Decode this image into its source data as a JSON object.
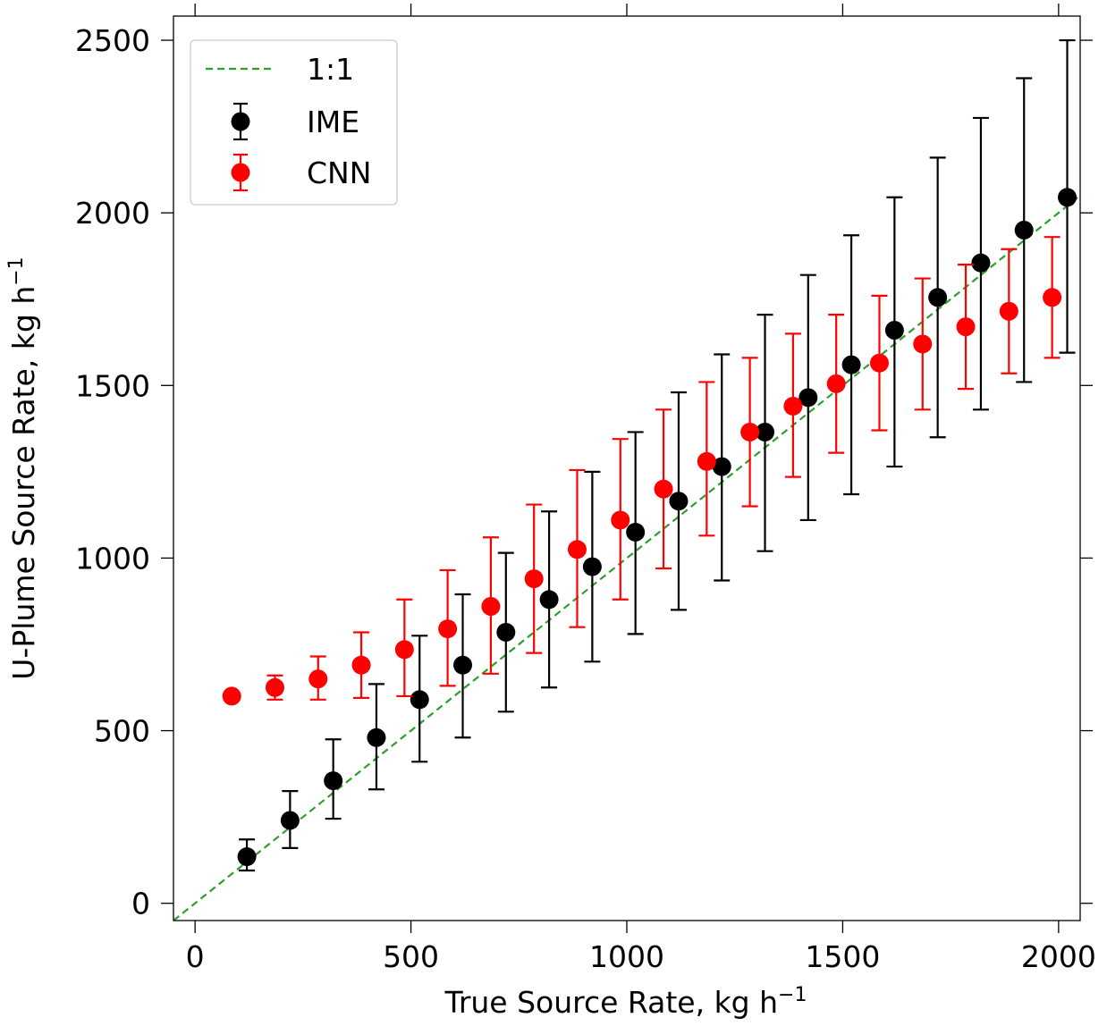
{
  "chart_data": {
    "type": "scatter",
    "xlabel": "True Source Rate, kg h",
    "xlabel_sup": "−1",
    "ylabel": "U-Plume Source Rate, kg h",
    "ylabel_sup": "−1",
    "xlim": [
      -50,
      2050
    ],
    "ylim": [
      -50,
      2570
    ],
    "xticks": [
      0,
      500,
      1000,
      1500,
      2000
    ],
    "xtick_labels": [
      "0",
      "500",
      "1000",
      "1500",
      "2000"
    ],
    "yticks": [
      0,
      500,
      1000,
      1500,
      2000,
      2500
    ],
    "ytick_labels": [
      "0",
      "500",
      "1000",
      "1500",
      "2000",
      "2500"
    ],
    "grid": false,
    "legend_position": "top-left",
    "reference_line": {
      "name": "1:1",
      "color": "#2ca02c",
      "style": "dashed"
    },
    "series": [
      {
        "name": "IME",
        "color": "#000000",
        "x": [
          120,
          220,
          320,
          420,
          520,
          620,
          720,
          820,
          920,
          1020,
          1120,
          1220,
          1320,
          1420,
          1520,
          1620,
          1720,
          1820,
          1920,
          2020
        ],
        "y": [
          135,
          240,
          355,
          480,
          590,
          690,
          785,
          880,
          975,
          1075,
          1165,
          1265,
          1365,
          1465,
          1560,
          1660,
          1755,
          1855,
          1950,
          2045
        ],
        "err_low": [
          95,
          160,
          245,
          330,
          410,
          480,
          555,
          625,
          700,
          780,
          850,
          935,
          1020,
          1110,
          1185,
          1265,
          1350,
          1430,
          1510,
          1595
        ],
        "err_high": [
          185,
          325,
          475,
          635,
          775,
          895,
          1015,
          1135,
          1250,
          1365,
          1480,
          1590,
          1705,
          1820,
          1935,
          2045,
          2160,
          2275,
          2390,
          2500
        ]
      },
      {
        "name": "CNN",
        "color": "#ff0000",
        "x": [
          85,
          185,
          285,
          385,
          485,
          585,
          685,
          785,
          885,
          985,
          1085,
          1185,
          1285,
          1385,
          1485,
          1585,
          1685,
          1785,
          1885,
          1985
        ],
        "y": [
          600,
          625,
          650,
          690,
          735,
          795,
          860,
          940,
          1025,
          1110,
          1200,
          1280,
          1365,
          1440,
          1505,
          1565,
          1620,
          1670,
          1715,
          1755
        ],
        "err_low": [
          null,
          590,
          590,
          595,
          600,
          630,
          665,
          725,
          800,
          880,
          970,
          1065,
          1150,
          1235,
          1305,
          1370,
          1430,
          1490,
          1535,
          1580
        ],
        "err_high": [
          null,
          660,
          715,
          785,
          880,
          965,
          1060,
          1155,
          1255,
          1345,
          1430,
          1510,
          1580,
          1650,
          1705,
          1760,
          1810,
          1850,
          1895,
          1930
        ]
      }
    ]
  }
}
